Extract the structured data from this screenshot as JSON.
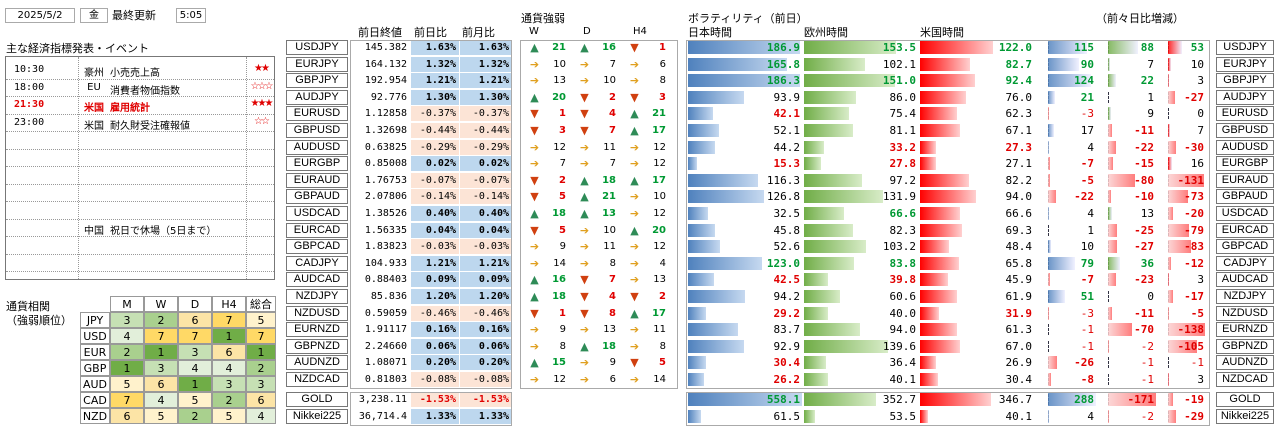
{
  "header": {
    "date": "2025/5/2",
    "weekday": "金",
    "updated_label": "最終更新",
    "time": "5:05"
  },
  "events": {
    "title": "主な経済指標発表・イベント",
    "items": [
      {
        "time": "10:30",
        "country": "豪州",
        "name": "小売売上高",
        "stars": "★★",
        "highlight": false
      },
      {
        "time": "18:00",
        "country": "EU",
        "name": "消費者物価指数",
        "stars": "☆☆☆",
        "highlight": false
      },
      {
        "time": "21:30",
        "country": "米国",
        "name": "雇用統計",
        "stars": "★★★",
        "highlight": true
      },
      {
        "time": "23:00",
        "country": "米国",
        "name": "耐久財受注確報値",
        "stars": "☆☆",
        "highlight": false
      },
      {
        "time": "",
        "country": "",
        "name": "",
        "stars": "",
        "highlight": false
      },
      {
        "time": "",
        "country": "",
        "name": "",
        "stars": "",
        "highlight": false
      },
      {
        "time": "",
        "country": "",
        "name": "",
        "stars": "",
        "highlight": false
      },
      {
        "time": "",
        "country": "",
        "name": "",
        "stars": "",
        "highlight": false
      },
      {
        "time": "",
        "country": "",
        "name": "",
        "stars": "",
        "highlight": false
      },
      {
        "time": "",
        "country": "中国",
        "name": "祝日で休場（5日まで）",
        "stars": "",
        "highlight": false
      },
      {
        "time": "",
        "country": "",
        "name": "",
        "stars": "",
        "highlight": false
      },
      {
        "time": "",
        "country": "",
        "name": "",
        "stars": "",
        "highlight": false
      }
    ]
  },
  "correlation": {
    "title1": "通貨相関",
    "title2": "（強弱順位）",
    "headers": [
      "M",
      "W",
      "D",
      "H4",
      "総合"
    ],
    "rows": [
      {
        "cur": "JPY",
        "v": [
          3,
          2,
          6,
          7,
          5
        ]
      },
      {
        "cur": "USD",
        "v": [
          4,
          7,
          7,
          1,
          7
        ]
      },
      {
        "cur": "EUR",
        "v": [
          2,
          1,
          3,
          6,
          1
        ]
      },
      {
        "cur": "GBP",
        "v": [
          1,
          3,
          4,
          4,
          2
        ]
      },
      {
        "cur": "AUD",
        "v": [
          5,
          6,
          1,
          3,
          3
        ]
      },
      {
        "cur": "CAD",
        "v": [
          7,
          4,
          5,
          2,
          6
        ]
      },
      {
        "cur": "NZD",
        "v": [
          6,
          5,
          2,
          5,
          4
        ]
      }
    ]
  },
  "table": {
    "col_close": "前日終値",
    "col_day": "前日比",
    "col_month": "前月比",
    "strength_title": "通貨強弱",
    "strength_cols": [
      "W",
      "D",
      "H4"
    ],
    "vol_title": "ボラティリティ（前日）",
    "vol_jp": "日本時間",
    "vol_eu": "欧州時間",
    "vol_us": "米国時間",
    "change_title": "（前々日比増減）",
    "colors": {
      "accent_red": "#e00000",
      "accent_green": "#009933",
      "up_bg": "#bdd7ee",
      "down_bg": "#fce4d6",
      "blue_bar": "#4f81bd",
      "green_bar": "#70ad47",
      "red_bar": "#ff0000"
    },
    "rows": [
      {
        "pair": "USDJPY",
        "close": "145.382",
        "day": "1.63%",
        "month": "1.63%",
        "s": [
          [
            "up",
            21
          ],
          [
            "up",
            16
          ],
          [
            "dn",
            1
          ]
        ],
        "jp": "186.9",
        "eu": "153.5",
        "us": "122.0",
        "cj": "115",
        "ce": "88",
        "cu": "53",
        "vj": 186.9,
        "ve": 153.5,
        "vu": 122.0,
        "dj": 115,
        "de": 88,
        "du": 53
      },
      {
        "pair": "EURJPY",
        "close": "164.132",
        "day": "1.32%",
        "month": "1.32%",
        "s": [
          [
            "rt",
            10
          ],
          [
            "rt",
            7
          ],
          [
            "rt",
            6
          ]
        ],
        "jp": "165.8",
        "eu": "102.1",
        "us": "82.7",
        "cj": "90",
        "ce": "7",
        "cu": "10",
        "vj": 165.8,
        "ve": 102.1,
        "vu": 82.7,
        "dj": 90,
        "de": 7,
        "du": 10
      },
      {
        "pair": "GBPJPY",
        "close": "192.954",
        "day": "1.21%",
        "month": "1.21%",
        "s": [
          [
            "rt",
            13
          ],
          [
            "rt",
            10
          ],
          [
            "rt",
            8
          ]
        ],
        "jp": "186.3",
        "eu": "151.0",
        "us": "92.4",
        "cj": "124",
        "ce": "22",
        "cu": "3",
        "vj": 186.3,
        "ve": 151.0,
        "vu": 92.4,
        "dj": 124,
        "de": 22,
        "du": 3
      },
      {
        "pair": "AUDJPY",
        "close": "92.776",
        "day": "1.30%",
        "month": "1.30%",
        "s": [
          [
            "up",
            20
          ],
          [
            "dn",
            2
          ],
          [
            "dn",
            3
          ]
        ],
        "jp": "93.9",
        "eu": "86.0",
        "us": "76.0",
        "cj": "21",
        "ce": "1",
        "cu": "-27",
        "vj": 93.9,
        "ve": 86.0,
        "vu": 76.0,
        "dj": 21,
        "de": 1,
        "du": -27
      },
      {
        "pair": "EURUSD",
        "close": "1.12858",
        "day": "-0.37%",
        "month": "-0.37%",
        "s": [
          [
            "dn",
            1
          ],
          [
            "dn",
            4
          ],
          [
            "up",
            21
          ]
        ],
        "jp": "42.1",
        "eu": "75.4",
        "us": "62.3",
        "cj": "-3",
        "ce": "9",
        "cu": "0",
        "vj": 42.1,
        "ve": 75.4,
        "vu": 62.3,
        "dj": -3,
        "de": 9,
        "du": 0
      },
      {
        "pair": "GBPUSD",
        "close": "1.32698",
        "day": "-0.44%",
        "month": "-0.44%",
        "s": [
          [
            "dn",
            3
          ],
          [
            "dn",
            7
          ],
          [
            "up",
            17
          ]
        ],
        "jp": "52.1",
        "eu": "81.1",
        "us": "67.1",
        "cj": "17",
        "ce": "-11",
        "cu": "7",
        "vj": 52.1,
        "ve": 81.1,
        "vu": 67.1,
        "dj": 17,
        "de": -11,
        "du": 7
      },
      {
        "pair": "AUDUSD",
        "close": "0.63825",
        "day": "-0.29%",
        "month": "-0.29%",
        "s": [
          [
            "rt",
            12
          ],
          [
            "rt",
            11
          ],
          [
            "rt",
            12
          ]
        ],
        "jp": "44.2",
        "eu": "33.2",
        "us": "27.3",
        "cj": "4",
        "ce": "-22",
        "cu": "-30",
        "vj": 44.2,
        "ve": 33.2,
        "vu": 27.3,
        "dj": 4,
        "de": -22,
        "du": -30
      },
      {
        "pair": "EURGBP",
        "close": "0.85008",
        "day": "0.02%",
        "month": "0.02%",
        "s": [
          [
            "rt",
            7
          ],
          [
            "rt",
            7
          ],
          [
            "rt",
            12
          ]
        ],
        "jp": "15.3",
        "eu": "27.8",
        "us": "27.1",
        "cj": "-7",
        "ce": "-15",
        "cu": "16",
        "vj": 15.3,
        "ve": 27.8,
        "vu": 27.1,
        "dj": -7,
        "de": -15,
        "du": 16
      },
      {
        "pair": "EURAUD",
        "close": "1.76753",
        "day": "-0.07%",
        "month": "-0.07%",
        "s": [
          [
            "dn",
            2
          ],
          [
            "up",
            18
          ],
          [
            "up",
            17
          ]
        ],
        "jp": "116.3",
        "eu": "97.2",
        "us": "82.2",
        "cj": "-5",
        "ce": "-80",
        "cu": "-131",
        "vj": 116.3,
        "ve": 97.2,
        "vu": 82.2,
        "dj": -5,
        "de": -80,
        "du": -131
      },
      {
        "pair": "GBPAUD",
        "close": "2.07806",
        "day": "-0.14%",
        "month": "-0.14%",
        "s": [
          [
            "dn",
            5
          ],
          [
            "up",
            21
          ],
          [
            "rt",
            10
          ]
        ],
        "jp": "126.8",
        "eu": "131.9",
        "us": "94.0",
        "cj": "-22",
        "ce": "-10",
        "cu": "-73",
        "vj": 126.8,
        "ve": 131.9,
        "vu": 94.0,
        "dj": -22,
        "de": -10,
        "du": -73
      },
      {
        "pair": "USDCAD",
        "close": "1.38526",
        "day": "0.40%",
        "month": "0.40%",
        "s": [
          [
            "up",
            18
          ],
          [
            "up",
            13
          ],
          [
            "rt",
            12
          ]
        ],
        "jp": "32.5",
        "eu": "66.6",
        "us": "66.6",
        "cj": "4",
        "ce": "13",
        "cu": "-20",
        "vj": 32.5,
        "ve": 66.6,
        "vu": 66.6,
        "dj": 4,
        "de": 13,
        "du": -20
      },
      {
        "pair": "EURCAD",
        "close": "1.56335",
        "day": "0.04%",
        "month": "0.04%",
        "s": [
          [
            "dn",
            5
          ],
          [
            "rt",
            10
          ],
          [
            "up",
            20
          ]
        ],
        "jp": "45.8",
        "eu": "82.3",
        "us": "69.3",
        "cj": "1",
        "ce": "-25",
        "cu": "-79",
        "vj": 45.8,
        "ve": 82.3,
        "vu": 69.3,
        "dj": 1,
        "de": -25,
        "du": -79
      },
      {
        "pair": "GBPCAD",
        "close": "1.83823",
        "day": "-0.03%",
        "month": "-0.03%",
        "s": [
          [
            "rt",
            9
          ],
          [
            "rt",
            11
          ],
          [
            "rt",
            12
          ]
        ],
        "jp": "52.6",
        "eu": "103.2",
        "us": "48.4",
        "cj": "10",
        "ce": "-27",
        "cu": "-83",
        "vj": 52.6,
        "ve": 103.2,
        "vu": 48.4,
        "dj": 10,
        "de": -27,
        "du": -83
      },
      {
        "pair": "CADJPY",
        "close": "104.933",
        "day": "1.21%",
        "month": "1.21%",
        "s": [
          [
            "rt",
            14
          ],
          [
            "rt",
            8
          ],
          [
            "rt",
            4
          ]
        ],
        "jp": "123.0",
        "eu": "83.8",
        "us": "65.8",
        "cj": "79",
        "ce": "36",
        "cu": "-12",
        "vj": 123.0,
        "ve": 83.8,
        "vu": 65.8,
        "dj": 79,
        "de": 36,
        "du": -12
      },
      {
        "pair": "AUDCAD",
        "close": "0.88403",
        "day": "0.09%",
        "month": "0.09%",
        "s": [
          [
            "up",
            16
          ],
          [
            "dn",
            7
          ],
          [
            "rt",
            13
          ]
        ],
        "jp": "42.5",
        "eu": "39.8",
        "us": "45.9",
        "cj": "-7",
        "ce": "-23",
        "cu": "3",
        "vj": 42.5,
        "ve": 39.8,
        "vu": 45.9,
        "dj": -7,
        "de": -23,
        "du": 3
      },
      {
        "pair": "NZDJPY",
        "close": "85.836",
        "day": "1.20%",
        "month": "1.20%",
        "s": [
          [
            "up",
            18
          ],
          [
            "dn",
            4
          ],
          [
            "dn",
            2
          ]
        ],
        "jp": "94.2",
        "eu": "60.6",
        "us": "61.9",
        "cj": "51",
        "ce": "0",
        "cu": "-17",
        "vj": 94.2,
        "ve": 60.6,
        "vu": 61.9,
        "dj": 51,
        "de": 0,
        "du": -17
      },
      {
        "pair": "NZDUSD",
        "close": "0.59059",
        "day": "-0.46%",
        "month": "-0.46%",
        "s": [
          [
            "dn",
            1
          ],
          [
            "dn",
            8
          ],
          [
            "up",
            17
          ]
        ],
        "jp": "29.2",
        "eu": "40.0",
        "us": "31.9",
        "cj": "-3",
        "ce": "-11",
        "cu": "-5",
        "vj": 29.2,
        "ve": 40.0,
        "vu": 31.9,
        "dj": -3,
        "de": -11,
        "du": -5
      },
      {
        "pair": "EURNZD",
        "close": "1.91117",
        "day": "0.16%",
        "month": "0.16%",
        "s": [
          [
            "rt",
            9
          ],
          [
            "rt",
            13
          ],
          [
            "rt",
            11
          ]
        ],
        "jp": "83.7",
        "eu": "94.0",
        "us": "61.3",
        "cj": "-1",
        "ce": "-70",
        "cu": "-138",
        "vj": 83.7,
        "ve": 94.0,
        "vu": 61.3,
        "dj": -1,
        "de": -70,
        "du": -138
      },
      {
        "pair": "GBPNZD",
        "close": "2.24660",
        "day": "0.06%",
        "month": "0.06%",
        "s": [
          [
            "rt",
            8
          ],
          [
            "up",
            18
          ],
          [
            "rt",
            8
          ]
        ],
        "jp": "92.9",
        "eu": "139.6",
        "us": "67.0",
        "cj": "-1",
        "ce": "-2",
        "cu": "-105",
        "vj": 92.9,
        "ve": 139.6,
        "vu": 67.0,
        "dj": -1,
        "de": -2,
        "du": -105
      },
      {
        "pair": "AUDNZD",
        "close": "1.08071",
        "day": "0.20%",
        "month": "0.20%",
        "s": [
          [
            "up",
            15
          ],
          [
            "rt",
            9
          ],
          [
            "dn",
            5
          ]
        ],
        "jp": "30.4",
        "eu": "36.4",
        "us": "26.9",
        "cj": "-26",
        "ce": "-1",
        "cu": "-1",
        "vj": 30.4,
        "ve": 36.4,
        "vu": 26.9,
        "dj": -26,
        "de": -1,
        "du": -1
      },
      {
        "pair": "NZDCAD",
        "close": "0.81803",
        "day": "-0.08%",
        "month": "-0.08%",
        "s": [
          [
            "rt",
            12
          ],
          [
            "rt",
            6
          ],
          [
            "rt",
            14
          ]
        ],
        "jp": "26.2",
        "eu": "40.1",
        "us": "30.4",
        "cj": "-8",
        "ce": "-1",
        "cu": "3",
        "vj": 26.2,
        "ve": 40.1,
        "vu": 30.4,
        "dj": -8,
        "de": -1,
        "du": 3
      }
    ],
    "extra": [
      {
        "pair": "GOLD",
        "close": "3,238.11",
        "day": "-1.53%",
        "month": "-1.53%",
        "jp": "558.1",
        "eu": "352.7",
        "us": "346.7",
        "cj": "288",
        "ce": "-171",
        "cu": "-19",
        "vj": 558.1,
        "ve": 352.7,
        "vu": 346.7,
        "dj": 288,
        "de": -171,
        "du": -19
      },
      {
        "pair": "Nikkei225",
        "close": "36,714.4",
        "day": "1.33%",
        "month": "1.33%",
        "jp": "61.5",
        "eu": "53.5",
        "us": "40.1",
        "cj": "4",
        "ce": "-2",
        "cu": "-29",
        "vj": 61.5,
        "ve": 53.5,
        "vu": 40.1,
        "dj": 4,
        "de": -2,
        "du": -29
      }
    ]
  }
}
